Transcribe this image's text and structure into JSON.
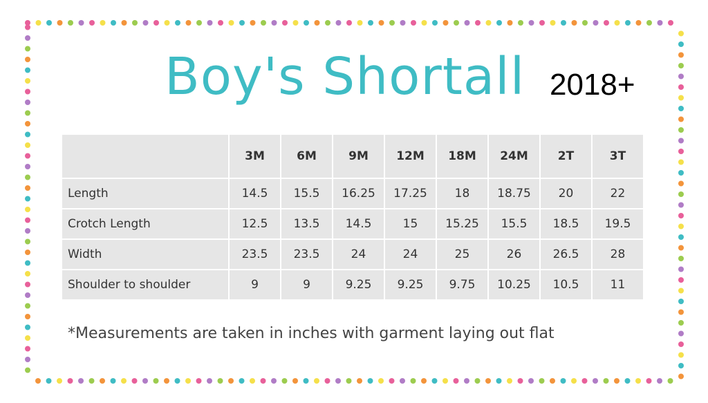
{
  "header": {
    "title": "Boy's Shortall",
    "edition": "2018+"
  },
  "table": {
    "columns": [
      "3M",
      "6M",
      "9M",
      "12M",
      "18M",
      "24M",
      "2T",
      "3T"
    ],
    "rows": [
      [
        "Length",
        "14.5",
        "15.5",
        "16.25",
        "17.25",
        "18",
        "18.75",
        "20",
        "22"
      ],
      [
        "Crotch Length",
        "12.5",
        "13.5",
        "14.5",
        "15",
        "15.25",
        "15.5",
        "18.5",
        "19.5"
      ],
      [
        "Width",
        "23.5",
        "23.5",
        "24",
        "24",
        "25",
        "26",
        "26.5",
        "28"
      ],
      [
        "Shoulder to shoulder",
        "9",
        "9",
        "9.25",
        "9.25",
        "9.75",
        "10.25",
        "10.5",
        "11"
      ]
    ]
  },
  "note": "*Measurements are taken in inches with garment laying out flat"
}
